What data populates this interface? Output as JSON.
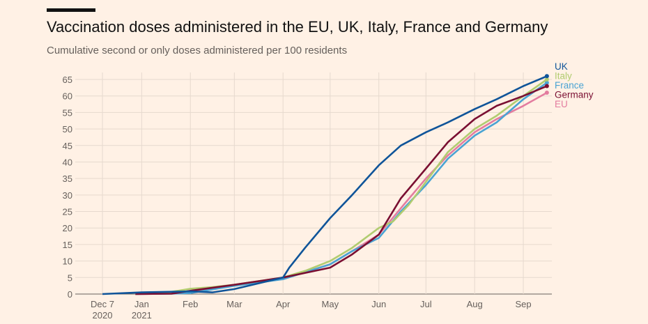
{
  "chart_data": {
    "type": "line",
    "title": "Vaccination doses administered in the EU, UK, Italy, France and Germany",
    "subtitle": "Cumulative second or only doses administered per 100 residents",
    "xlabel": "",
    "ylabel": "",
    "ylim": [
      0,
      65
    ],
    "yticks": [
      0,
      5,
      10,
      15,
      20,
      25,
      30,
      35,
      40,
      45,
      50,
      55,
      60,
      65
    ],
    "xticks": [
      {
        "date": "2020-12-07",
        "label": "Dec 7",
        "label2": "2020"
      },
      {
        "date": "2021-01-01",
        "label": "Jan",
        "label2": "2021"
      },
      {
        "date": "2021-02-01",
        "label": "Feb"
      },
      {
        "date": "2021-03-01",
        "label": "Mar"
      },
      {
        "date": "2021-04-01",
        "label": "Apr"
      },
      {
        "date": "2021-05-01",
        "label": "May"
      },
      {
        "date": "2021-06-01",
        "label": "Jun"
      },
      {
        "date": "2021-07-01",
        "label": "Jul"
      },
      {
        "date": "2021-08-01",
        "label": "Aug"
      },
      {
        "date": "2021-09-01",
        "label": "Sep"
      }
    ],
    "grid": true,
    "legend": "right, direct labels at line ends",
    "series": [
      {
        "name": "EU",
        "color": "#e37c9f",
        "points": [
          [
            "2020-12-28",
            0
          ],
          [
            "2021-01-15",
            0.1
          ],
          [
            "2021-02-01",
            0.8
          ],
          [
            "2021-03-01",
            2.6
          ],
          [
            "2021-04-01",
            4.6
          ],
          [
            "2021-05-01",
            9
          ],
          [
            "2021-05-15",
            13
          ],
          [
            "2021-06-01",
            18
          ],
          [
            "2021-06-15",
            26
          ],
          [
            "2021-07-01",
            35
          ],
          [
            "2021-07-15",
            42
          ],
          [
            "2021-08-01",
            49
          ],
          [
            "2021-08-15",
            53
          ],
          [
            "2021-09-01",
            57
          ],
          [
            "2021-09-16",
            61
          ]
        ]
      },
      {
        "name": "France",
        "color": "#4aa3d3",
        "points": [
          [
            "2020-12-28",
            0
          ],
          [
            "2021-01-20",
            0.1
          ],
          [
            "2021-02-01",
            0.3
          ],
          [
            "2021-03-01",
            2.5
          ],
          [
            "2021-04-01",
            4.5
          ],
          [
            "2021-05-01",
            9
          ],
          [
            "2021-05-15",
            13
          ],
          [
            "2021-06-01",
            17
          ],
          [
            "2021-06-15",
            25
          ],
          [
            "2021-07-01",
            33
          ],
          [
            "2021-07-15",
            41
          ],
          [
            "2021-08-01",
            48
          ],
          [
            "2021-08-15",
            52
          ],
          [
            "2021-09-01",
            59
          ],
          [
            "2021-09-16",
            64
          ]
        ]
      },
      {
        "name": "Italy",
        "color": "#b1cc70",
        "points": [
          [
            "2020-12-28",
            0
          ],
          [
            "2021-01-15",
            0.3
          ],
          [
            "2021-02-01",
            1.6
          ],
          [
            "2021-02-15",
            2.1
          ],
          [
            "2021-03-01",
            2.8
          ],
          [
            "2021-04-01",
            5
          ],
          [
            "2021-04-15",
            7
          ],
          [
            "2021-05-01",
            10
          ],
          [
            "2021-05-15",
            14
          ],
          [
            "2021-06-01",
            20
          ],
          [
            "2021-06-10",
            22
          ],
          [
            "2021-06-20",
            27
          ],
          [
            "2021-07-01",
            34
          ],
          [
            "2021-07-15",
            43
          ],
          [
            "2021-08-01",
            50
          ],
          [
            "2021-08-15",
            54
          ],
          [
            "2021-09-01",
            60
          ],
          [
            "2021-09-16",
            65
          ]
        ]
      },
      {
        "name": "Germany",
        "color": "#7a0f32",
        "points": [
          [
            "2020-12-28",
            0
          ],
          [
            "2021-01-20",
            0.1
          ],
          [
            "2021-02-01",
            1
          ],
          [
            "2021-03-01",
            2.8
          ],
          [
            "2021-04-01",
            5
          ],
          [
            "2021-05-01",
            8
          ],
          [
            "2021-05-15",
            12
          ],
          [
            "2021-06-01",
            18
          ],
          [
            "2021-06-15",
            29
          ],
          [
            "2021-07-01",
            38
          ],
          [
            "2021-07-15",
            46
          ],
          [
            "2021-08-01",
            53
          ],
          [
            "2021-08-15",
            57
          ],
          [
            "2021-09-01",
            60
          ],
          [
            "2021-09-16",
            63
          ]
        ]
      },
      {
        "name": "UK",
        "color": "#0f5499",
        "points": [
          [
            "2020-12-07",
            0
          ],
          [
            "2021-01-01",
            0.5
          ],
          [
            "2021-02-01",
            0.8
          ],
          [
            "2021-02-15",
            0.5
          ],
          [
            "2021-03-01",
            1.5
          ],
          [
            "2021-04-01",
            5
          ],
          [
            "2021-04-05",
            8
          ],
          [
            "2021-04-15",
            14
          ],
          [
            "2021-05-01",
            23
          ],
          [
            "2021-05-15",
            30
          ],
          [
            "2021-06-01",
            39
          ],
          [
            "2021-06-15",
            45
          ],
          [
            "2021-07-01",
            49
          ],
          [
            "2021-07-15",
            52
          ],
          [
            "2021-08-01",
            56
          ],
          [
            "2021-08-15",
            59
          ],
          [
            "2021-09-01",
            63
          ],
          [
            "2021-09-16",
            66
          ]
        ]
      }
    ],
    "label_order": [
      "UK",
      "Italy",
      "France",
      "Germany",
      "EU"
    ]
  }
}
